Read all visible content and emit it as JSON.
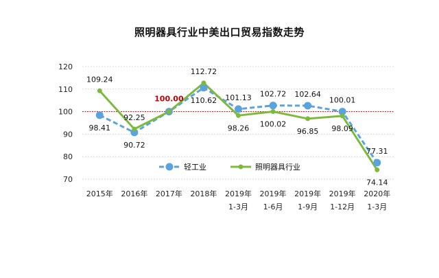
{
  "chart_data": {
    "type": "line",
    "title": "照明器具行业中美出口贸易指数走势",
    "xlabel": "",
    "ylabel": "",
    "ylim": [
      70,
      120
    ],
    "yticks": [
      70,
      80,
      90,
      100,
      110,
      120
    ],
    "grid": true,
    "reference_line": 100,
    "legend_position": "inside-bottom-center",
    "categories": [
      "2015年",
      "2016年",
      "2017年",
      "2018年",
      "2019年 1-3月",
      "2019年 1-6月",
      "2019年 1-9月",
      "2019年 1-12月",
      "2020年 1-3月"
    ],
    "series": [
      {
        "name": "轻工业",
        "color": "#5ba3dc",
        "style": "dashed",
        "values": [
          98.41,
          90.72,
          100.0,
          110.62,
          101.13,
          102.72,
          102.64,
          100.01,
          77.31
        ],
        "labels": [
          "98.41",
          "90.72",
          "100.00",
          "110.62",
          "101.13",
          "102.72",
          "102.64",
          "100.01",
          "77.31"
        ]
      },
      {
        "name": "照明器具行业",
        "color": "#7dba3c",
        "style": "solid",
        "values": [
          109.24,
          92.25,
          100.0,
          112.72,
          98.26,
          100.02,
          96.85,
          98.09,
          74.14
        ],
        "labels": [
          "109.24",
          "92.25",
          "100.00",
          "112.72",
          "98.26",
          "100.02",
          "96.85",
          "98.09",
          "74.14"
        ]
      }
    ]
  }
}
